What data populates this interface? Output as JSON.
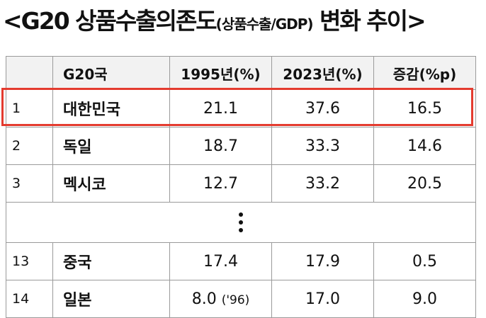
{
  "title": {
    "main_prefix": "<G20 상품수출의존도",
    "sub": "(상품수출/GDP)",
    "main_suffix": " 변화 추이>"
  },
  "table": {
    "headers": [
      "",
      "G20국",
      "1995년(%)",
      "2023년(%)",
      "증감(%p)"
    ],
    "rows_top": [
      {
        "rank": "1",
        "country": "대한민국",
        "y1995": "21.1",
        "y2023": "37.6",
        "change": "16.5"
      },
      {
        "rank": "2",
        "country": "독일",
        "y1995": "18.7",
        "y2023": "33.3",
        "change": "14.6"
      },
      {
        "rank": "3",
        "country": "멕시코",
        "y1995": "12.7",
        "y2023": "33.2",
        "change": "20.5"
      }
    ],
    "rows_bottom": [
      {
        "rank": "13",
        "country": "중국",
        "y1995": "17.4",
        "y2023": "17.9",
        "change": "0.5"
      },
      {
        "rank": "14",
        "country": "일본",
        "y1995": "8.0",
        "y1995_note": "('96)",
        "y2023": "17.0",
        "change": "9.0"
      }
    ]
  },
  "colors": {
    "highlight": "#e43b2f",
    "header_bg": "#f2f2f2",
    "border": "#9a9a9a"
  }
}
